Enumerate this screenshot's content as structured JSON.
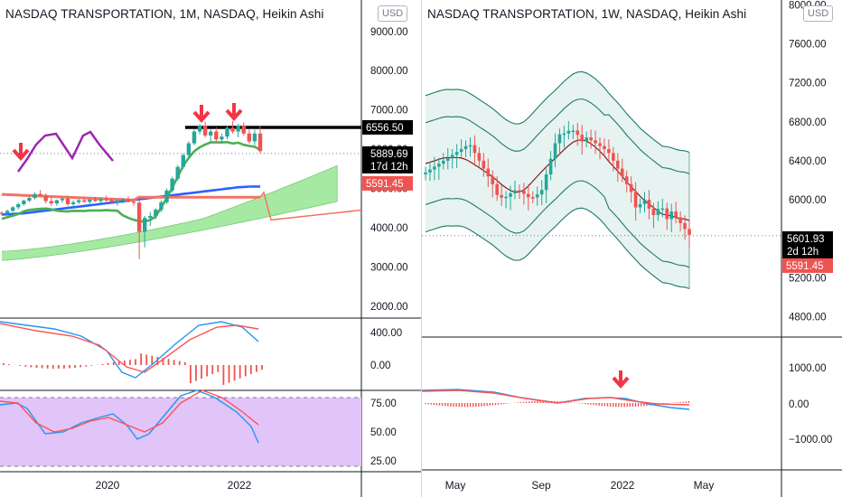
{
  "colors": {
    "up": "#26a69a",
    "down": "#ef5350",
    "axis_text": "#131722",
    "ema_red": "#f57263",
    "ema_blue": "#2962ff",
    "purple": "#9c27b0",
    "cloud": "#a6e9a3",
    "bb_fill": "#e6f3f1",
    "bb_line": "#1f7a6c",
    "bb_mid": "#8b1a1a",
    "stoch_bg": "#e1c4f8",
    "signal_red": "#ff5252",
    "marker": "#f23645"
  },
  "left": {
    "title": "NASDAQ TRANSPORTATION, 1M, NASDAQ, Heikin Ashi",
    "currency": "USD",
    "labels": {
      "level": "6556.50",
      "last": "5889.69",
      "countdown": "17d 12h",
      "close": "5591.45"
    },
    "xaxis": [
      "2020",
      "2022"
    ]
  },
  "right": {
    "title": "NASDAQ TRANSPORTATION, 1W, NASDAQ, Heikin Ashi",
    "currency": "USD",
    "labels": {
      "last": "5601.93",
      "countdown": "2d 12h",
      "close": "5591.45"
    },
    "xaxis": [
      "May",
      "Sep",
      "2022",
      "May"
    ]
  },
  "chart_data": [
    {
      "type": "candlestick",
      "title": "NASDAQ TRANSPORTATION, 1M, NASDAQ, Heikin Ashi",
      "price_axis": {
        "ticks": [
          2000,
          3000,
          4000,
          5000,
          6000,
          7000,
          8000,
          9000
        ],
        "range": [
          1700,
          9800
        ]
      },
      "horizontal_level": 6556.5,
      "close_price": 5591.45,
      "last_price": 5889.69,
      "x_labels": [
        "2020",
        "2022"
      ],
      "annotations": [
        "down-arrow",
        "down-arrow",
        "down-arrow"
      ],
      "candles": [
        [
          4380,
          4420,
          4320,
          4350
        ],
        [
          4360,
          4460,
          4330,
          4430
        ],
        [
          4430,
          4560,
          4400,
          4520
        ],
        [
          4520,
          4640,
          4470,
          4600
        ],
        [
          4600,
          4720,
          4560,
          4690
        ],
        [
          4690,
          4800,
          4650,
          4760
        ],
        [
          4760,
          4900,
          4720,
          4860
        ],
        [
          4860,
          4960,
          4780,
          4820
        ],
        [
          4820,
          4880,
          4620,
          4680
        ],
        [
          4680,
          4760,
          4560,
          4620
        ],
        [
          4620,
          4720,
          4560,
          4700
        ],
        [
          4700,
          4780,
          4640,
          4740
        ],
        [
          4740,
          4820,
          4560,
          4600
        ],
        [
          4600,
          4700,
          4520,
          4650
        ],
        [
          4650,
          4740,
          4600,
          4700
        ],
        [
          4700,
          4780,
          4640,
          4660
        ],
        [
          4660,
          4740,
          4600,
          4720
        ],
        [
          4720,
          4790,
          4660,
          4680
        ],
        [
          4680,
          4760,
          4620,
          4730
        ],
        [
          4730,
          4820,
          4660,
          4700
        ],
        [
          4700,
          4760,
          4600,
          4650
        ],
        [
          4650,
          4720,
          4560,
          4690
        ],
        [
          4690,
          4760,
          4620,
          4720
        ],
        [
          4720,
          4800,
          4640,
          4660
        ],
        [
          4660,
          4720,
          4560,
          4640
        ],
        [
          4640,
          4700,
          3200,
          3900
        ],
        [
          3900,
          4300,
          3500,
          4250
        ],
        [
          4250,
          4400,
          4050,
          4300
        ],
        [
          4300,
          4500,
          4220,
          4460
        ],
        [
          4460,
          4700,
          4400,
          4650
        ],
        [
          4650,
          5000,
          4600,
          4950
        ],
        [
          4950,
          5300,
          4900,
          5250
        ],
        [
          5250,
          5600,
          5200,
          5550
        ],
        [
          5550,
          5900,
          5500,
          5850
        ],
        [
          5850,
          6200,
          5800,
          6150
        ],
        [
          6150,
          6500,
          6100,
          6450
        ],
        [
          6450,
          6640,
          6380,
          6600
        ],
        [
          6600,
          6700,
          6300,
          6350
        ],
        [
          6350,
          6520,
          6200,
          6450
        ],
        [
          6450,
          6560,
          6180,
          6250
        ],
        [
          6250,
          6400,
          6150,
          6320
        ],
        [
          6320,
          6600,
          6250,
          6550
        ],
        [
          6550,
          6720,
          6400,
          6450
        ],
        [
          6450,
          6650,
          6300,
          6600
        ],
        [
          6600,
          6680,
          6350,
          6400
        ],
        [
          6400,
          6500,
          6150,
          6200
        ],
        [
          6200,
          6500,
          6100,
          6400
        ],
        [
          6400,
          6600,
          5900,
          5950
        ]
      ],
      "sub_panels": [
        {
          "type": "macd",
          "ticks": [
            0,
            400
          ]
        },
        {
          "type": "stochastic_rsi",
          "ticks": [
            25,
            50,
            75
          ]
        }
      ]
    },
    {
      "type": "candlestick",
      "title": "NASDAQ TRANSPORTATION, 1W, NASDAQ, Heikin Ashi",
      "price_axis": {
        "ticks": [
          4800,
          5200,
          5600,
          6000,
          6400,
          6800,
          7200,
          7600,
          8000
        ],
        "range": [
          4600,
          8050
        ]
      },
      "close_price": 5591.45,
      "last_price": 5601.93,
      "x_labels": [
        "May",
        "Sep",
        "2022",
        "May"
      ],
      "annotations": [
        "down-arrow"
      ],
      "sub_panels": [
        {
          "type": "macd",
          "ticks": [
            -1000,
            0,
            1000
          ]
        }
      ]
    }
  ]
}
